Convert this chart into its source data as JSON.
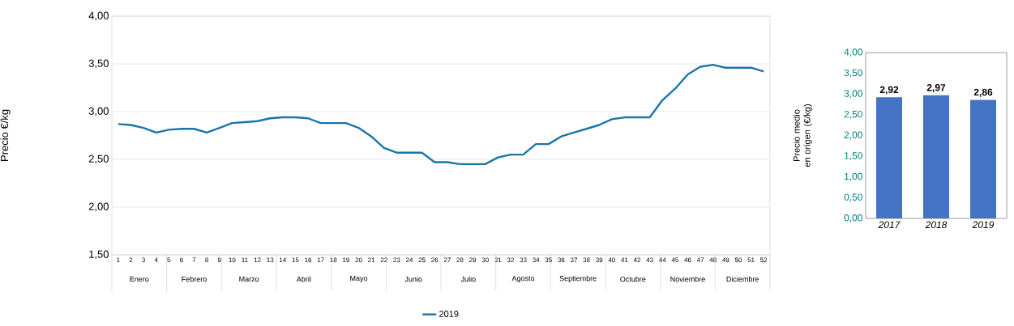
{
  "chart_data": [
    {
      "type": "line",
      "ylabel": "Precio €/kg",
      "categories": [
        "1",
        "2",
        "3",
        "4",
        "5",
        "6",
        "7",
        "8",
        "9",
        "10",
        "11",
        "12",
        "13",
        "14",
        "15",
        "16",
        "17",
        "18",
        "19",
        "20",
        "21",
        "22",
        "23",
        "24",
        "25",
        "26",
        "27",
        "28",
        "29",
        "30",
        "31",
        "32",
        "33",
        "34",
        "35",
        "36",
        "37",
        "38",
        "39",
        "40",
        "41",
        "42",
        "43",
        "44",
        "45",
        "46",
        "47",
        "48",
        "49",
        "50",
        "51",
        "52"
      ],
      "series": [
        {
          "name": "2019",
          "color": "#1b75a8",
          "values": [
            2.87,
            2.86,
            2.83,
            2.78,
            2.81,
            2.82,
            2.82,
            2.78,
            2.83,
            2.88,
            2.89,
            2.9,
            2.93,
            2.94,
            2.94,
            2.93,
            2.88,
            2.88,
            2.88,
            2.83,
            2.74,
            2.62,
            2.57,
            2.57,
            2.57,
            2.47,
            2.47,
            2.45,
            2.45,
            2.45,
            2.52,
            2.55,
            2.55,
            2.66,
            2.66,
            2.74,
            2.78,
            2.82,
            2.86,
            2.92,
            2.94,
            2.94,
            2.94,
            3.12,
            3.24,
            3.39,
            3.47,
            3.49,
            3.46,
            3.46,
            3.46,
            3.42
          ]
        }
      ],
      "ylim": [
        1.5,
        4.0
      ],
      "yticks": [
        {
          "value": 1.5,
          "label": "1,50"
        },
        {
          "value": 2.0,
          "label": "2,00"
        },
        {
          "value": 2.5,
          "label": "2,50"
        },
        {
          "value": 3.0,
          "label": "3,00"
        },
        {
          "value": 3.5,
          "label": "3,50"
        },
        {
          "value": 4.0,
          "label": "4,00"
        }
      ],
      "grid": "y",
      "legend": "bottom",
      "annotations": [
        "Enero",
        "Febrero",
        "Marzo",
        "Abril",
        "Mayo",
        "Junio",
        "Julio",
        "Agosto",
        "Septiembre",
        "Octubre",
        "Noviembre",
        "Diciembre"
      ]
    },
    {
      "type": "bar",
      "ylabel": "Precio medio en origen (€/kg)",
      "categories": [
        "2017",
        "2018",
        "2019"
      ],
      "values": [
        2.92,
        2.97,
        2.86
      ],
      "color": "#4472c4",
      "value_labels": [
        "2,92",
        "2,97",
        "2,86"
      ],
      "ylim": [
        0,
        4.0
      ],
      "yticks": [
        {
          "value": 0,
          "label": "0,00"
        },
        {
          "value": 0.5,
          "label": "0,50"
        },
        {
          "value": 1.0,
          "label": "1,00"
        },
        {
          "value": 1.5,
          "label": "1,50"
        },
        {
          "value": 2.0,
          "label": "2,00"
        },
        {
          "value": 2.5,
          "label": "2,50"
        },
        {
          "value": 3.0,
          "label": "3,00"
        },
        {
          "value": 3.5,
          "label": "3,50"
        },
        {
          "value": 4.0,
          "label": "4,00"
        }
      ]
    }
  ]
}
